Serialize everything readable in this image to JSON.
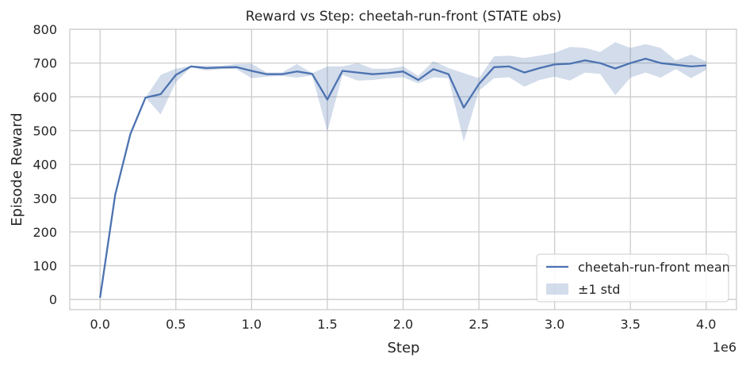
{
  "chart_data": {
    "type": "line",
    "title": "Reward vs Step: cheetah-run-front (STATE obs)",
    "xlabel": "Step",
    "ylabel": "Episode Reward",
    "x_offset_label": "1e6",
    "xlim": [
      -0.2,
      4.2
    ],
    "ylim": [
      -30,
      800
    ],
    "x_ticks": [
      0.0,
      0.5,
      1.0,
      1.5,
      2.0,
      2.5,
      3.0,
      3.5,
      4.0
    ],
    "x_tick_labels": [
      "0.0",
      "0.5",
      "1.0",
      "1.5",
      "2.0",
      "2.5",
      "3.0",
      "3.5",
      "4.0"
    ],
    "y_ticks": [
      0,
      100,
      200,
      300,
      400,
      500,
      600,
      700,
      800
    ],
    "y_tick_labels": [
      "0",
      "100",
      "200",
      "300",
      "400",
      "500",
      "600",
      "700",
      "800"
    ],
    "grid": true,
    "legend_position": "bottom-right",
    "colors": {
      "line": "#4c72b0",
      "band": "#4c72b0",
      "grid": "#cccccc",
      "axes": "#cccccc"
    },
    "x": [
      0.0,
      0.1,
      0.2,
      0.3,
      0.4,
      0.5,
      0.6,
      0.7,
      0.8,
      0.9,
      1.0,
      1.1,
      1.2,
      1.3,
      1.4,
      1.5,
      1.6,
      1.7,
      1.8,
      1.9,
      2.0,
      2.1,
      2.2,
      2.3,
      2.4,
      2.5,
      2.6,
      2.7,
      2.8,
      2.9,
      3.0,
      3.1,
      3.2,
      3.3,
      3.4,
      3.5,
      3.6,
      3.7,
      3.8,
      3.9,
      4.0
    ],
    "series": [
      {
        "name": "cheetah-run-front mean",
        "values": [
          5,
          310,
          490,
          598,
          608,
          665,
          690,
          685,
          687,
          688,
          677,
          667,
          667,
          675,
          668,
          592,
          677,
          672,
          667,
          670,
          675,
          650,
          682,
          667,
          568,
          638,
          688,
          690,
          672,
          685,
          696,
          698,
          708,
          700,
          684,
          700,
          713,
          700,
          695,
          690,
          693
        ],
        "upper": [
          5,
          310,
          492,
          598,
          665,
          683,
          692,
          692,
          692,
          697,
          698,
          672,
          672,
          697,
          670,
          690,
          690,
          700,
          683,
          683,
          690,
          662,
          706,
          685,
          670,
          655,
          720,
          722,
          715,
          722,
          730,
          748,
          745,
          733,
          762,
          745,
          756,
          745,
          708,
          725,
          705
        ],
        "lower": [
          5,
          310,
          488,
          598,
          548,
          643,
          688,
          678,
          682,
          682,
          655,
          660,
          662,
          657,
          663,
          497,
          665,
          648,
          650,
          655,
          658,
          640,
          658,
          655,
          467,
          618,
          655,
          658,
          630,
          650,
          660,
          648,
          672,
          668,
          605,
          657,
          672,
          657,
          682,
          655,
          680
        ]
      }
    ],
    "legend": [
      {
        "label": "cheetah-run-front mean",
        "kind": "line"
      },
      {
        "label": "±1 std",
        "kind": "band"
      }
    ]
  }
}
